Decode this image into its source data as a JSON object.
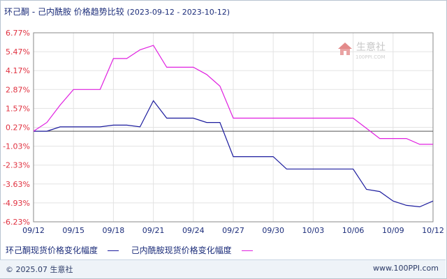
{
  "title": "环己酮 - 己内酰胺 价格趋势比较",
  "date_range": "(2023-09-12 - 2023-10-12)",
  "watermark": {
    "brand": "生意社",
    "url": "100PPI.COM"
  },
  "footer": {
    "copyright": "© 2025.07 生意社",
    "site": "www.100PPI.com"
  },
  "chart_data": {
    "type": "line",
    "title": "环己酮 - 己内酰胺 价格趋势比较",
    "y_ticks": [
      "6.77%",
      "5.47%",
      "4.17%",
      "2.87%",
      "1.57%",
      "0.27%",
      "-1.03%",
      "-2.33%",
      "-3.63%",
      "-4.93%",
      "-6.23%"
    ],
    "x_ticks": [
      "09/12",
      "09/15",
      "09/18",
      "09/21",
      "09/24",
      "09/27",
      "09/30",
      "10/03",
      "10/06",
      "10/09",
      "10/12"
    ],
    "ylim": [
      -6.23,
      6.77
    ],
    "grid": true,
    "legend_position": "bottom-left",
    "series": [
      {
        "name": "环己酮现货价格变化幅度",
        "color": "#1c1c9e",
        "x": [
          "09/12",
          "09/13",
          "09/14",
          "09/15",
          "09/16",
          "09/17",
          "09/18",
          "09/19",
          "09/20",
          "09/21",
          "09/22",
          "09/23",
          "09/24",
          "09/25",
          "09/26",
          "09/27",
          "09/28",
          "09/29",
          "09/30",
          "10/01",
          "10/02",
          "10/03",
          "10/04",
          "10/05",
          "10/06",
          "10/07",
          "10/08",
          "10/09",
          "10/10",
          "10/11",
          "10/12"
        ],
        "values": [
          0,
          0,
          0.3,
          0.3,
          0.3,
          0.3,
          0.42,
          0.42,
          0.3,
          2.1,
          0.9,
          0.9,
          0.9,
          0.6,
          0.6,
          -1.75,
          -1.75,
          -1.75,
          -1.75,
          -2.6,
          -2.6,
          -2.6,
          -2.6,
          -2.6,
          -2.6,
          -4.0,
          -4.15,
          -4.8,
          -5.1,
          -5.2,
          -4.8
        ]
      },
      {
        "name": "己内酰胺现货价格变化幅度",
        "color": "#e020e0",
        "x": [
          "09/12",
          "09/13",
          "09/14",
          "09/15",
          "09/16",
          "09/17",
          "09/18",
          "09/19",
          "09/20",
          "09/21",
          "09/22",
          "09/23",
          "09/24",
          "09/25",
          "09/26",
          "09/27",
          "09/28",
          "09/29",
          "09/30",
          "10/01",
          "10/02",
          "10/03",
          "10/04",
          "10/05",
          "10/06",
          "10/07",
          "10/08",
          "10/09",
          "10/10",
          "10/11",
          "10/12"
        ],
        "values": [
          0,
          0.6,
          1.8,
          2.87,
          2.87,
          2.87,
          5.0,
          5.0,
          5.6,
          5.9,
          4.4,
          4.4,
          4.4,
          3.9,
          3.1,
          0.9,
          0.9,
          0.9,
          0.9,
          0.9,
          0.9,
          0.9,
          0.9,
          0.9,
          0.9,
          0.2,
          -0.5,
          -0.5,
          -0.5,
          -0.9,
          -0.9
        ]
      }
    ]
  }
}
